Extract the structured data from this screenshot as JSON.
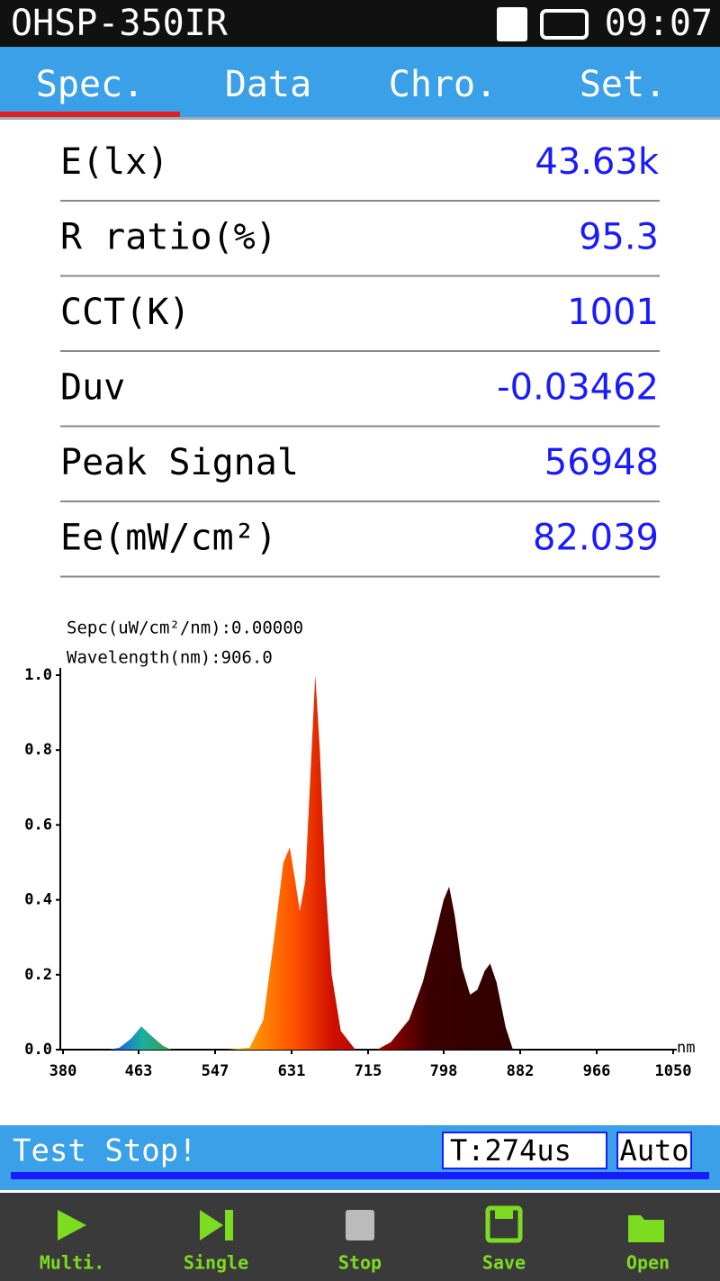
{
  "header": {
    "title": "OHSP-350IR",
    "time": "09:07"
  },
  "tabs": [
    "Spec.",
    "Data",
    "Chro.",
    "Set."
  ],
  "readings": [
    {
      "label": "E(lx)",
      "value": "43.63k"
    },
    {
      "label": "R ratio(%)",
      "value": "95.3"
    },
    {
      "label": "CCT(K)",
      "value": "1001"
    },
    {
      "label": "Duv",
      "value": "-0.03462"
    },
    {
      "label": "Peak Signal",
      "value": "56948"
    },
    {
      "label": "Ee(mW/cm²)",
      "value": "82.039"
    }
  ],
  "chart_data": {
    "type": "area",
    "annotations": [
      "Sepc(uW/cm²/nm):0.00000",
      "Wavelength(nm):906.0"
    ],
    "x_label": "nm",
    "x": [
      380,
      430,
      442,
      455,
      466,
      478,
      490,
      499,
      560,
      585,
      600,
      612,
      622,
      629,
      635,
      640,
      646,
      652,
      657,
      662,
      668,
      675,
      685,
      701,
      725,
      740,
      760,
      775,
      790,
      798,
      804,
      810,
      818,
      827,
      835,
      843,
      849,
      856,
      866,
      874,
      900,
      1050
    ],
    "values": [
      0,
      0,
      0.005,
      0.03,
      0.062,
      0.035,
      0.01,
      0,
      0,
      0.005,
      0.08,
      0.3,
      0.5,
      0.54,
      0.45,
      0.37,
      0.45,
      0.75,
      1.0,
      0.8,
      0.45,
      0.2,
      0.05,
      0,
      0,
      0.02,
      0.08,
      0.18,
      0.32,
      0.4,
      0.435,
      0.36,
      0.22,
      0.147,
      0.16,
      0.21,
      0.23,
      0.18,
      0.06,
      0,
      0,
      0
    ],
    "xlim": [
      380,
      1050
    ],
    "xticks": [
      380,
      463,
      547,
      631,
      715,
      798,
      882,
      966,
      1050
    ],
    "ylim": [
      0,
      1
    ],
    "yticks": [
      {
        "value": 0,
        "label": "0.0"
      },
      0.2,
      0.4,
      0.6,
      0.8,
      {
        "value": 1,
        "label": "1.0"
      }
    ]
  },
  "status": {
    "message": "Test Stop!",
    "time": "T:274us",
    "mode": "Auto"
  },
  "toolbar": [
    "Multi.",
    "Single",
    "Stop",
    "Save",
    "Open"
  ]
}
